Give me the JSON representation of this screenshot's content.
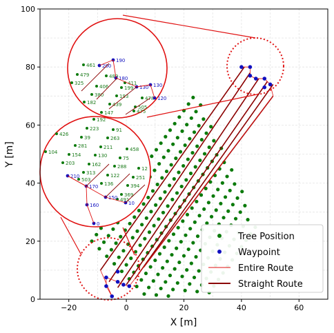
{
  "chart_data": {
    "type": "scatter",
    "xlabel": "X [m]",
    "ylabel": "Y [m]",
    "xlim": [
      -30,
      70
    ],
    "ylim": [
      0,
      100
    ],
    "xticks": [
      "−20",
      "0",
      "20",
      "40",
      "60"
    ],
    "yticks": [
      "0",
      "20",
      "40",
      "60",
      "80",
      "100"
    ],
    "xtick_values": [
      -20,
      0,
      20,
      40,
      60
    ],
    "ytick_values": [
      0,
      20,
      40,
      60,
      80,
      100
    ],
    "grid": true,
    "legend_position": "bottom-right",
    "legend": [
      {
        "label": "Tree Position",
        "kind": "green-dot"
      },
      {
        "label": "Waypoint",
        "kind": "blue-dot"
      },
      {
        "label": "Entire Route",
        "kind": "red-line"
      },
      {
        "label": "Straight Route",
        "kind": "darkred-line"
      }
    ],
    "colors": {
      "tree": "#0b7a0b",
      "waypoint": "#1010c0",
      "entire_route": "#e01010",
      "straight_route": "#8b0000",
      "zoom_circle": "#e01010"
    },
    "waypoints_bottom": [
      [
        -5,
        1
      ],
      [
        -7,
        4.5
      ],
      [
        -7,
        7.5
      ],
      [
        -3,
        6
      ],
      [
        -1,
        5
      ],
      [
        1,
        4.5
      ],
      [
        -3,
        9.5
      ]
    ],
    "waypoints_top": [
      [
        40,
        80
      ],
      [
        43,
        80
      ],
      [
        43,
        77
      ],
      [
        45,
        76
      ],
      [
        48,
        76
      ],
      [
        50,
        74
      ],
      [
        48,
        73
      ]
    ],
    "straight_routes": [
      [
        [
          -9,
          10
        ],
        [
          41,
          80
        ]
      ],
      [
        [
          -6,
          6
        ],
        [
          43,
          78
        ]
      ],
      [
        [
          -3,
          4
        ],
        [
          46,
          76
        ]
      ],
      [
        [
          0,
          5
        ],
        [
          49,
          75
        ]
      ],
      [
        [
          3,
          7
        ],
        [
          51,
          74
        ]
      ],
      [
        [
          6,
          11
        ],
        [
          51,
          70
        ]
      ]
    ],
    "zoom_top": {
      "labels_green": [
        "461",
        "479",
        "325",
        "406",
        "489",
        "411",
        "199",
        "380",
        "182",
        "193",
        "439",
        "478",
        "505",
        "147",
        "475"
      ],
      "labels_blue": [
        "200",
        "190",
        "180",
        "130",
        "130",
        "120"
      ]
    },
    "zoom_left": {
      "labels_green": [
        "192",
        "426",
        "223",
        "91",
        "39",
        "263",
        "281",
        "211",
        "458",
        "154",
        "130",
        "75",
        "203",
        "162",
        "288",
        "313",
        "122",
        "12",
        "503",
        "251",
        "136",
        "394",
        "369",
        "491",
        "104"
      ],
      "labels_blue": [
        "210",
        "170",
        "160",
        "150",
        "10",
        "0"
      ]
    }
  }
}
